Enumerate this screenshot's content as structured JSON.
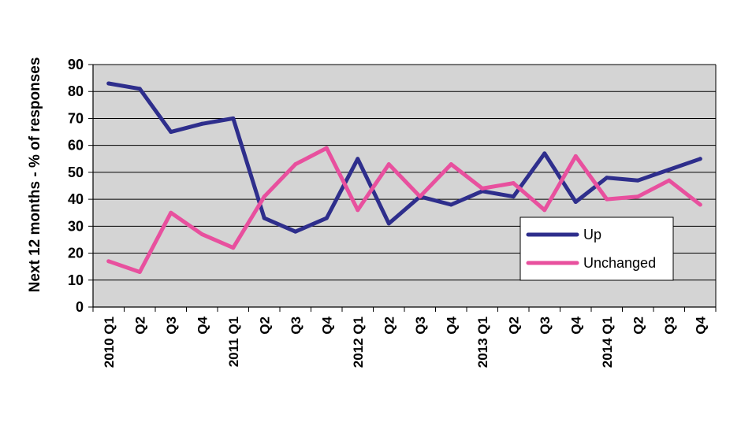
{
  "chart_data": {
    "type": "line",
    "ylabel": "Next 12 months - % of responses",
    "xlabel": "",
    "ylim": [
      0,
      90
    ],
    "yticks": [
      0,
      10,
      20,
      30,
      40,
      50,
      60,
      70,
      80,
      90
    ],
    "grid": true,
    "legend_position": "right",
    "categories": [
      "2010 Q1",
      "Q2",
      "Q3",
      "Q4",
      "2011 Q1",
      "Q2",
      "Q3",
      "Q4",
      "2012 Q1",
      "Q2",
      "Q3",
      "Q4",
      "2013 Q1",
      "Q2",
      "Q3",
      "Q4",
      "2014 Q1",
      "Q2",
      "Q3",
      "Q4"
    ],
    "series": [
      {
        "name": "Up",
        "color": "#2e2e8c",
        "values": [
          83,
          81,
          65,
          68,
          70,
          33,
          28,
          33,
          55,
          31,
          41,
          38,
          43,
          41,
          57,
          39,
          48,
          47,
          51,
          55
        ]
      },
      {
        "name": "Unchanged",
        "color": "#e8509e",
        "values": [
          17,
          13,
          35,
          27,
          22,
          41,
          53,
          59,
          36,
          53,
          41,
          53,
          44,
          46,
          36,
          56,
          40,
          41,
          47,
          38
        ]
      }
    ]
  },
  "colors": {
    "plot_background": "#d4d4d4",
    "grid": "#000000"
  }
}
